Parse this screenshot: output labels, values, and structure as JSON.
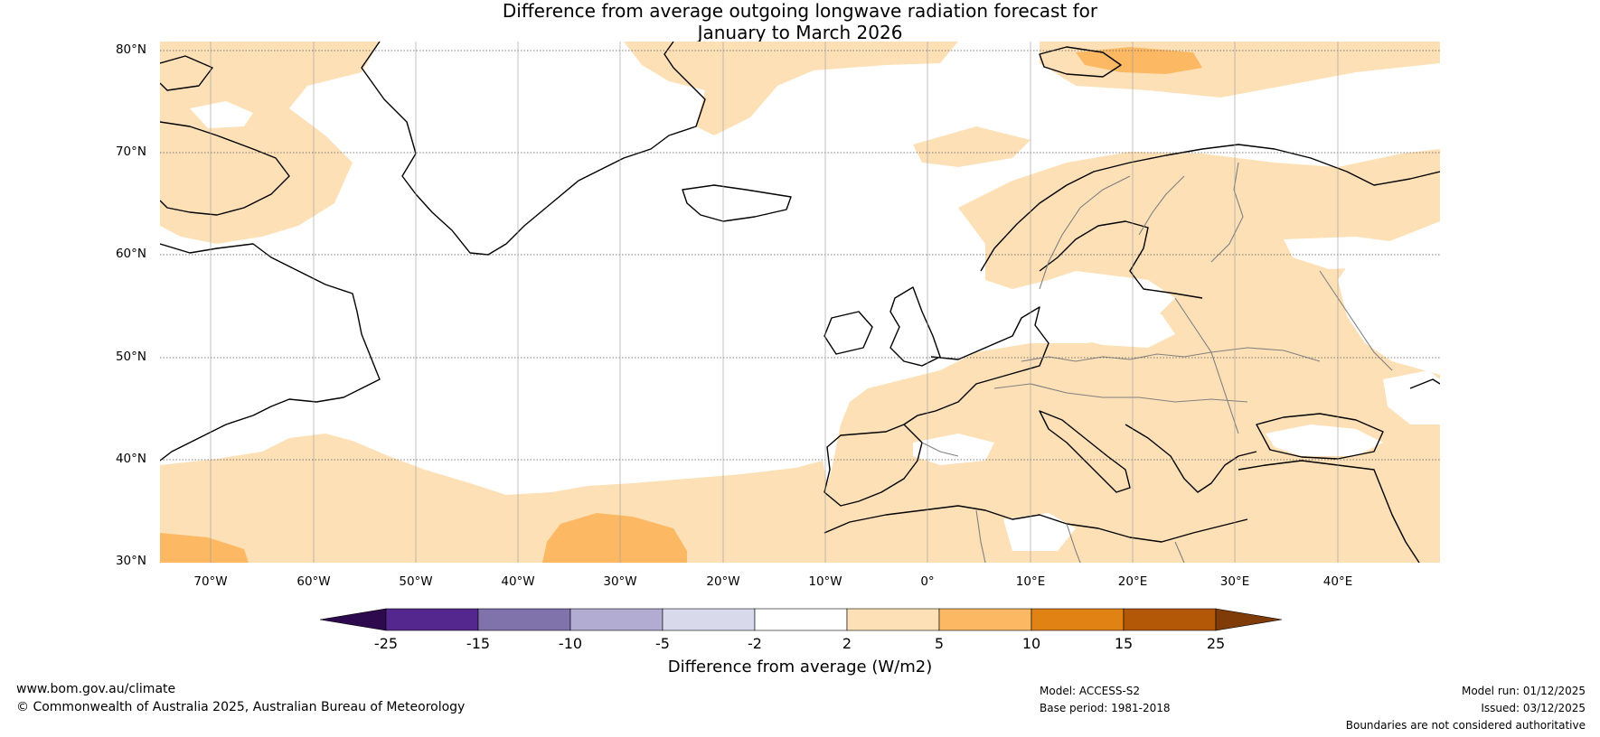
{
  "title": {
    "line1": "Difference from average outgoing longwave radiation forecast for",
    "line2": "January to March 2026"
  },
  "map": {
    "lat_labels": [
      "80°N",
      "70°N",
      "60°N",
      "50°N",
      "40°N",
      "30°N"
    ],
    "lon_labels": [
      "70°W",
      "60°W",
      "50°W",
      "40°W",
      "30°W",
      "20°W",
      "10°W",
      "0°",
      "10°E",
      "20°E",
      "30°E",
      "40°E"
    ],
    "ocean_color": "#ffffff",
    "coast_color": "#000000",
    "border_color": "#808080"
  },
  "colorbar": {
    "label": "Difference from average (W/m2)",
    "ticks": [
      "-25",
      "-15",
      "-10",
      "-5",
      "-2",
      "2",
      "5",
      "10",
      "15",
      "25"
    ],
    "colors": [
      "#2d0a4e",
      "#54278f",
      "#8073ac",
      "#b2abd2",
      "#d8daeb",
      "#ffffff",
      "#fde0b6",
      "#fdb863",
      "#e08214",
      "#b35806",
      "#7f3b08"
    ]
  },
  "footer": {
    "website": "www.bom.gov.au/climate",
    "copyright": "© Commonwealth of Australia 2025, Australian Bureau of Meteorology",
    "model": "Model: ACCESS-S2",
    "base_period": "Base period: 1981-2018",
    "model_run": "Model run: 01/12/2025",
    "issued": "Issued: 03/12/2025",
    "disclaimer": "Boundaries are not considered authoritative"
  }
}
